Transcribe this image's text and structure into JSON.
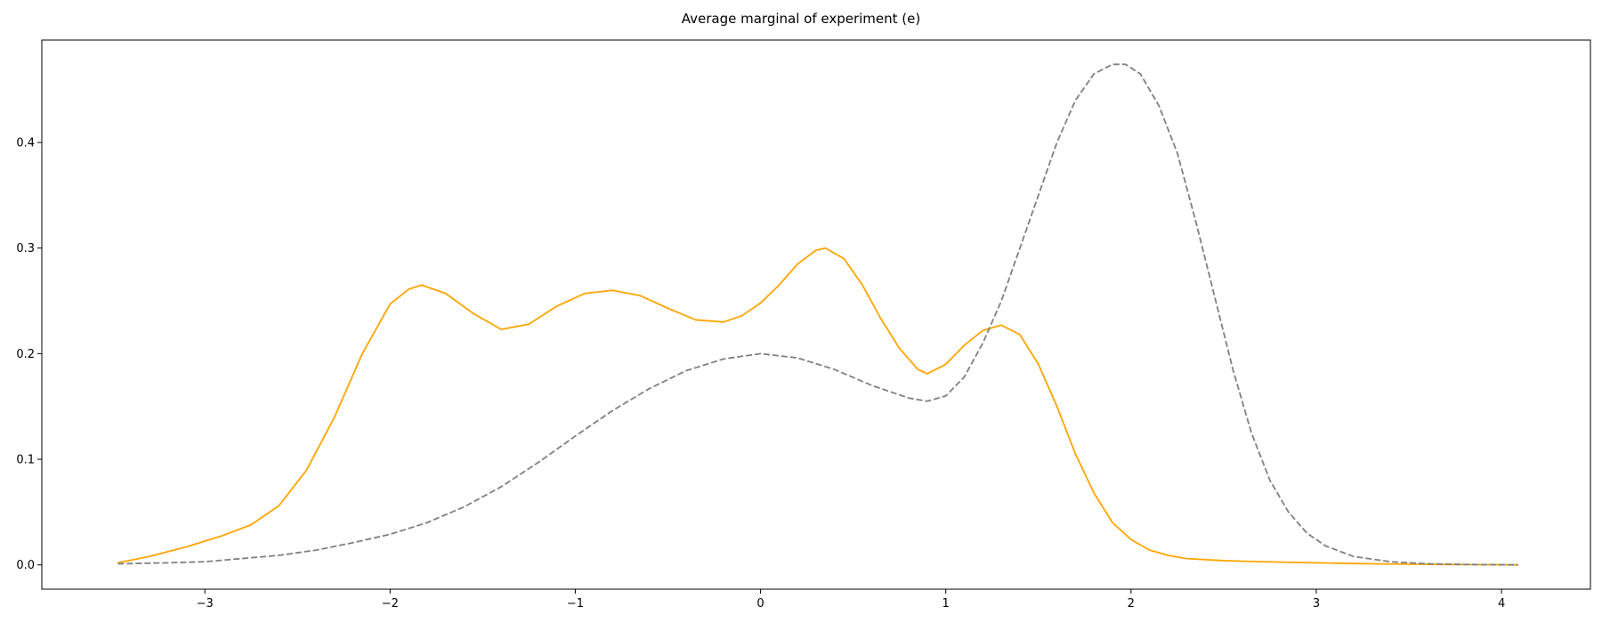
{
  "chart_data": {
    "type": "line",
    "title": "Average marginal of experiment (e)",
    "xlabel": "",
    "ylabel": "",
    "xlim": [
      -3.88,
      4.48
    ],
    "ylim": [
      -0.023,
      0.497
    ],
    "xticks": [
      -3,
      -2,
      -1,
      0,
      1,
      2,
      3,
      4
    ],
    "xtick_labels": [
      "−3",
      "−2",
      "−1",
      "0",
      "1",
      "2",
      "3",
      "4"
    ],
    "yticks": [
      0.0,
      0.1,
      0.2,
      0.3,
      0.4
    ],
    "ytick_labels": [
      "0.0",
      "0.1",
      "0.2",
      "0.3",
      "0.4"
    ],
    "grid": false,
    "legend": "none",
    "series": [
      {
        "style": "solid",
        "color": "#FFA500",
        "x": [
          -3.47,
          -3.3,
          -3.1,
          -2.9,
          -2.75,
          -2.6,
          -2.45,
          -2.3,
          -2.15,
          -2.0,
          -1.9,
          -1.83,
          -1.7,
          -1.55,
          -1.4,
          -1.25,
          -1.1,
          -0.95,
          -0.8,
          -0.65,
          -0.5,
          -0.35,
          -0.2,
          -0.1,
          0.0,
          0.1,
          0.2,
          0.3,
          0.35,
          0.45,
          0.55,
          0.65,
          0.75,
          0.85,
          0.9,
          1.0,
          1.1,
          1.2,
          1.3,
          1.4,
          1.5,
          1.6,
          1.7,
          1.8,
          1.9,
          2.0,
          2.1,
          2.2,
          2.3,
          2.5,
          2.7,
          3.0,
          3.3,
          3.6,
          4.09
        ],
        "y": [
          0.002,
          0.008,
          0.017,
          0.028,
          0.038,
          0.056,
          0.09,
          0.14,
          0.2,
          0.247,
          0.261,
          0.265,
          0.257,
          0.238,
          0.223,
          0.228,
          0.245,
          0.257,
          0.26,
          0.255,
          0.243,
          0.232,
          0.23,
          0.236,
          0.248,
          0.265,
          0.285,
          0.298,
          0.3,
          0.29,
          0.265,
          0.233,
          0.205,
          0.185,
          0.181,
          0.19,
          0.208,
          0.222,
          0.227,
          0.218,
          0.19,
          0.15,
          0.105,
          0.068,
          0.04,
          0.024,
          0.014,
          0.009,
          0.006,
          0.004,
          0.003,
          0.002,
          0.001,
          0.0005,
          0.0
        ]
      },
      {
        "style": "dashed",
        "color": "#808080",
        "x": [
          -3.47,
          -3.2,
          -3.0,
          -2.8,
          -2.6,
          -2.4,
          -2.2,
          -2.0,
          -1.8,
          -1.6,
          -1.4,
          -1.2,
          -1.0,
          -0.8,
          -0.6,
          -0.4,
          -0.2,
          0.0,
          0.2,
          0.4,
          0.6,
          0.8,
          0.9,
          1.0,
          1.1,
          1.2,
          1.3,
          1.4,
          1.5,
          1.6,
          1.7,
          1.8,
          1.9,
          1.97,
          2.05,
          2.15,
          2.25,
          2.35,
          2.45,
          2.55,
          2.65,
          2.75,
          2.85,
          2.95,
          3.05,
          3.2,
          3.4,
          3.6,
          3.8,
          4.09
        ],
        "y": [
          0.001,
          0.002,
          0.003,
          0.006,
          0.009,
          0.014,
          0.021,
          0.029,
          0.04,
          0.055,
          0.074,
          0.097,
          0.122,
          0.146,
          0.167,
          0.184,
          0.195,
          0.2,
          0.196,
          0.185,
          0.17,
          0.158,
          0.155,
          0.16,
          0.178,
          0.21,
          0.25,
          0.3,
          0.35,
          0.4,
          0.44,
          0.465,
          0.474,
          0.474,
          0.465,
          0.435,
          0.39,
          0.325,
          0.255,
          0.185,
          0.125,
          0.08,
          0.05,
          0.03,
          0.018,
          0.008,
          0.003,
          0.001,
          0.0004,
          0.0
        ]
      }
    ]
  }
}
